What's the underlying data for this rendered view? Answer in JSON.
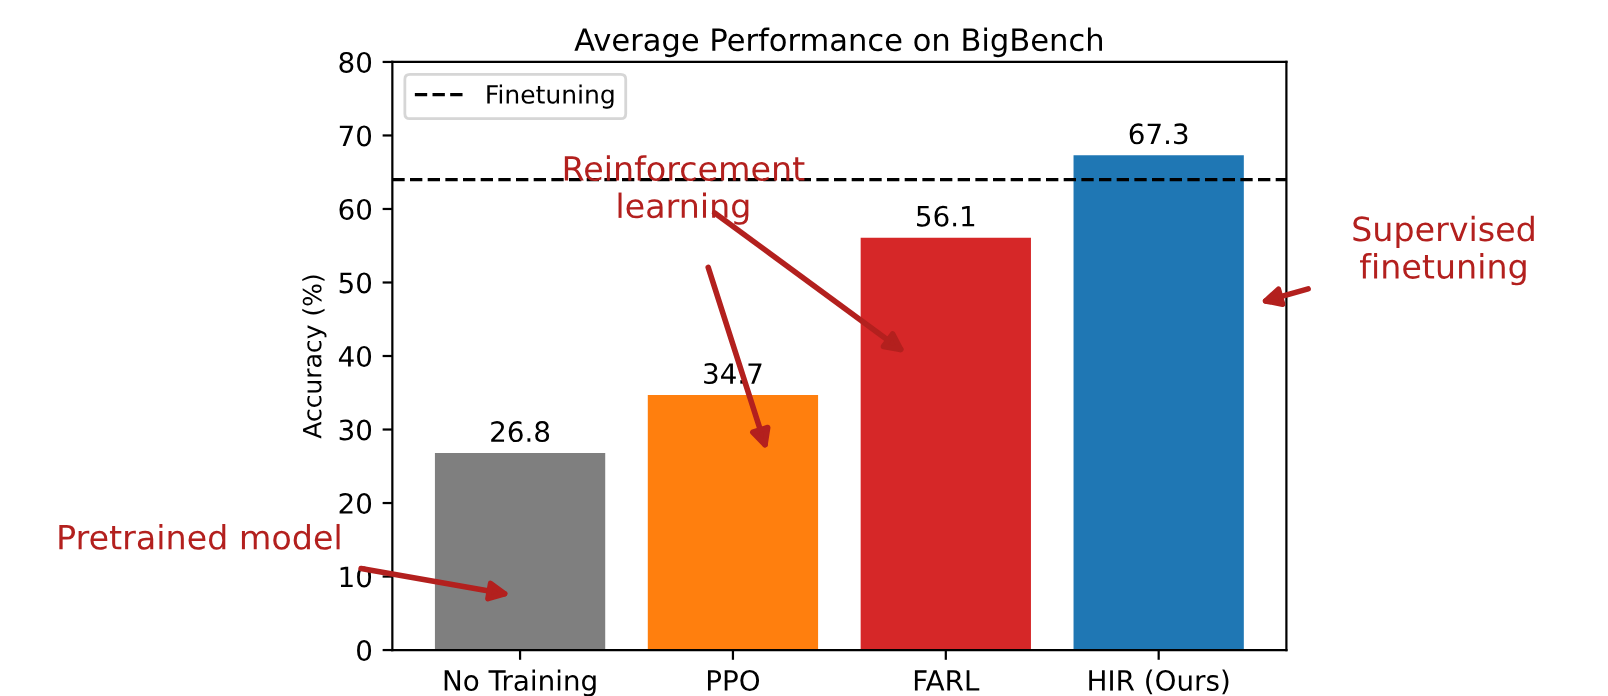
{
  "chart_data": {
    "type": "bar",
    "title": "Average Performance on BigBench",
    "ylabel": "Accuracy (%)",
    "categories": [
      "No Training",
      "PPO",
      "FARL",
      "HIR (Ours)"
    ],
    "values": [
      26.8,
      34.7,
      56.1,
      67.3
    ],
    "colors": [
      "#7f7f7f",
      "#ff7f0e",
      "#d62728",
      "#1f77b4"
    ],
    "data_labels": true,
    "ylim": [
      0,
      80
    ],
    "yticks": [
      0,
      10,
      20,
      30,
      40,
      50,
      60,
      70,
      80
    ],
    "ref_lines": [
      {
        "axis": "y",
        "value": 64,
        "label": "Finetuning",
        "color": "#000000",
        "line_style": "dashed"
      }
    ],
    "legend": "top left",
    "grid": false,
    "annotations": [
      "Pretrained model",
      "Reinforcement\nlearning",
      "Supervised\nfinetuning"
    ]
  }
}
